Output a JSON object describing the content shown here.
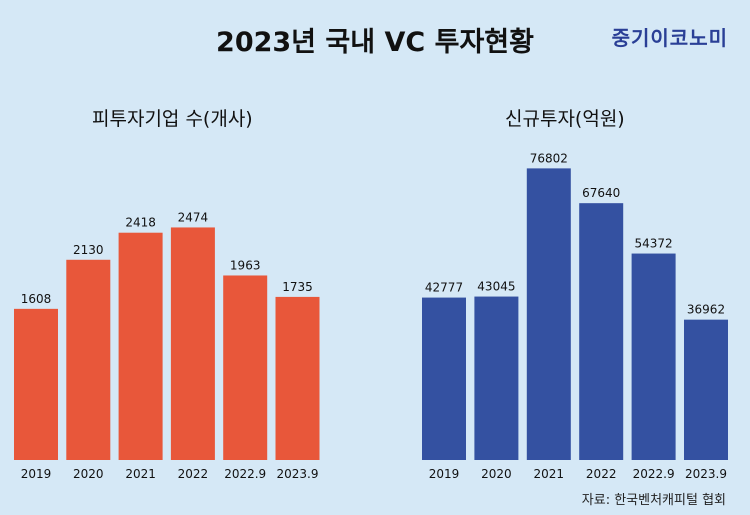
{
  "header": {
    "title": "2023년 국내 VC 투자현황",
    "brand": "중기이코노미"
  },
  "footer": {
    "source": "자료: 한국벤처캐피털 협회"
  },
  "colors": {
    "background": "#d5e8f6",
    "left_bar": "#e8573a",
    "right_bar": "#3451a1",
    "brand": "#2a3f96"
  },
  "chart_data": [
    {
      "type": "bar",
      "title": "피투자기업 수(개사)",
      "categories": [
        "2019",
        "2020",
        "2021",
        "2022",
        "2022.9",
        "2023.9"
      ],
      "values": [
        1608,
        2130,
        2418,
        2474,
        1963,
        1735
      ],
      "xlabel": "",
      "ylabel": "",
      "ylim": [
        0,
        2800
      ],
      "color": "#e8573a"
    },
    {
      "type": "bar",
      "title": "신규투자(억원)",
      "categories": [
        "2019",
        "2020",
        "2021",
        "2022",
        "2022.9",
        "2023.9"
      ],
      "values": [
        42777,
        43045,
        76802,
        67640,
        54372,
        36962
      ],
      "xlabel": "",
      "ylabel": "",
      "ylim": [
        0,
        85000
      ],
      "color": "#3451a1"
    }
  ]
}
